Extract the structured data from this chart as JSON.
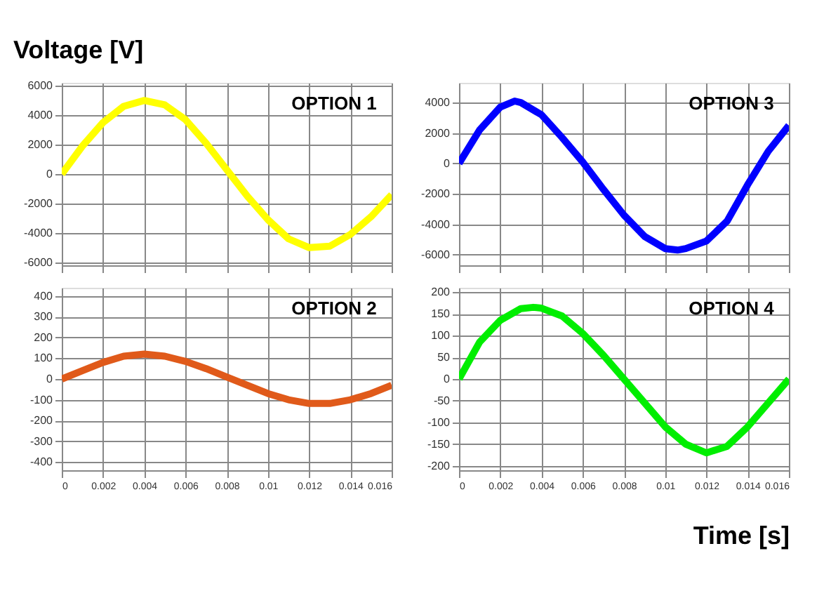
{
  "chart_data": [
    {
      "type": "line",
      "title": "OPTION 1",
      "ylabel": "Voltage [V]",
      "x": [
        0,
        0.001,
        0.002,
        0.003,
        0.004,
        0.005,
        0.006,
        0.007,
        0.008,
        0.009,
        0.01,
        0.011,
        0.012,
        0.013,
        0.014,
        0.015,
        0.016
      ],
      "series": [
        {
          "color": "#ffff00",
          "values": [
            0,
            1900,
            3500,
            4600,
            5000,
            4700,
            3700,
            2100,
            300,
            -1500,
            -3100,
            -4400,
            -5000,
            -4900,
            -4100,
            -2900,
            -1400
          ]
        }
      ],
      "xlim": [
        0,
        0.016
      ],
      "xticks": [
        0,
        0.002,
        0.004,
        0.006,
        0.008,
        0.01,
        0.012,
        0.014,
        0.016
      ],
      "ylim": [
        -6200,
        6200
      ],
      "yticks": [
        -6000,
        -4000,
        -2000,
        0,
        2000,
        4000,
        6000
      ],
      "grid": true,
      "tick_labels": "y"
    },
    {
      "type": "line",
      "title": "OPTION 3",
      "x": [
        0,
        0.001,
        0.002,
        0.0027,
        0.003,
        0.004,
        0.005,
        0.006,
        0.007,
        0.008,
        0.009,
        0.01,
        0.0106,
        0.011,
        0.012,
        0.013,
        0.014,
        0.015,
        0.016
      ],
      "series": [
        {
          "color": "#0000ff",
          "values": [
            0,
            2200,
            3700,
            4100,
            4000,
            3200,
            1700,
            100,
            -1700,
            -3400,
            -4800,
            -5600,
            -5700,
            -5600,
            -5100,
            -3800,
            -1400,
            800,
            2500
          ]
        }
      ],
      "xlim": [
        0,
        0.016
      ],
      "xticks": [
        0,
        0.002,
        0.004,
        0.006,
        0.008,
        0.01,
        0.012,
        0.014,
        0.016
      ],
      "ylim": [
        -6700,
        5300
      ],
      "yticks": [
        -6000,
        -4000,
        -2000,
        0,
        2000,
        4000
      ],
      "grid": true,
      "tick_labels": "y"
    },
    {
      "type": "line",
      "title": "OPTION 2",
      "x": [
        0,
        0.001,
        0.002,
        0.003,
        0.004,
        0.005,
        0.006,
        0.007,
        0.008,
        0.009,
        0.01,
        0.011,
        0.012,
        0.013,
        0.014,
        0.015,
        0.016
      ],
      "series": [
        {
          "color": "#e05a1a",
          "values": [
            0,
            40,
            80,
            110,
            120,
            110,
            85,
            50,
            10,
            -30,
            -70,
            -100,
            -118,
            -118,
            -100,
            -70,
            -30
          ]
        }
      ],
      "xlim": [
        0,
        0.016
      ],
      "xticks": [
        0,
        0.002,
        0.004,
        0.006,
        0.008,
        0.01,
        0.012,
        0.014,
        0.016
      ],
      "ylim": [
        -440,
        440
      ],
      "yticks": [
        -400,
        -300,
        -200,
        -100,
        0,
        100,
        200,
        300,
        400
      ],
      "grid": true
    },
    {
      "type": "line",
      "title": "OPTION 4",
      "xlabel": "Time [s]",
      "x": [
        0,
        0.001,
        0.002,
        0.003,
        0.0036,
        0.004,
        0.005,
        0.006,
        0.007,
        0.008,
        0.009,
        0.01,
        0.011,
        0.012,
        0.013,
        0.014,
        0.015,
        0.016
      ],
      "series": [
        {
          "color": "#00ee00",
          "values": [
            0,
            85,
            135,
            162,
            165,
            163,
            145,
            105,
            55,
            0,
            -55,
            -110,
            -150,
            -170,
            -155,
            -110,
            -55,
            0
          ]
        }
      ],
      "xlim": [
        0,
        0.016
      ],
      "xticks": [
        0,
        0.002,
        0.004,
        0.006,
        0.008,
        0.01,
        0.012,
        0.014,
        0.016
      ],
      "ylim": [
        -210,
        210
      ],
      "yticks": [
        -200,
        -150,
        -100,
        -50,
        0,
        50,
        100,
        150,
        200
      ],
      "grid": true
    }
  ]
}
